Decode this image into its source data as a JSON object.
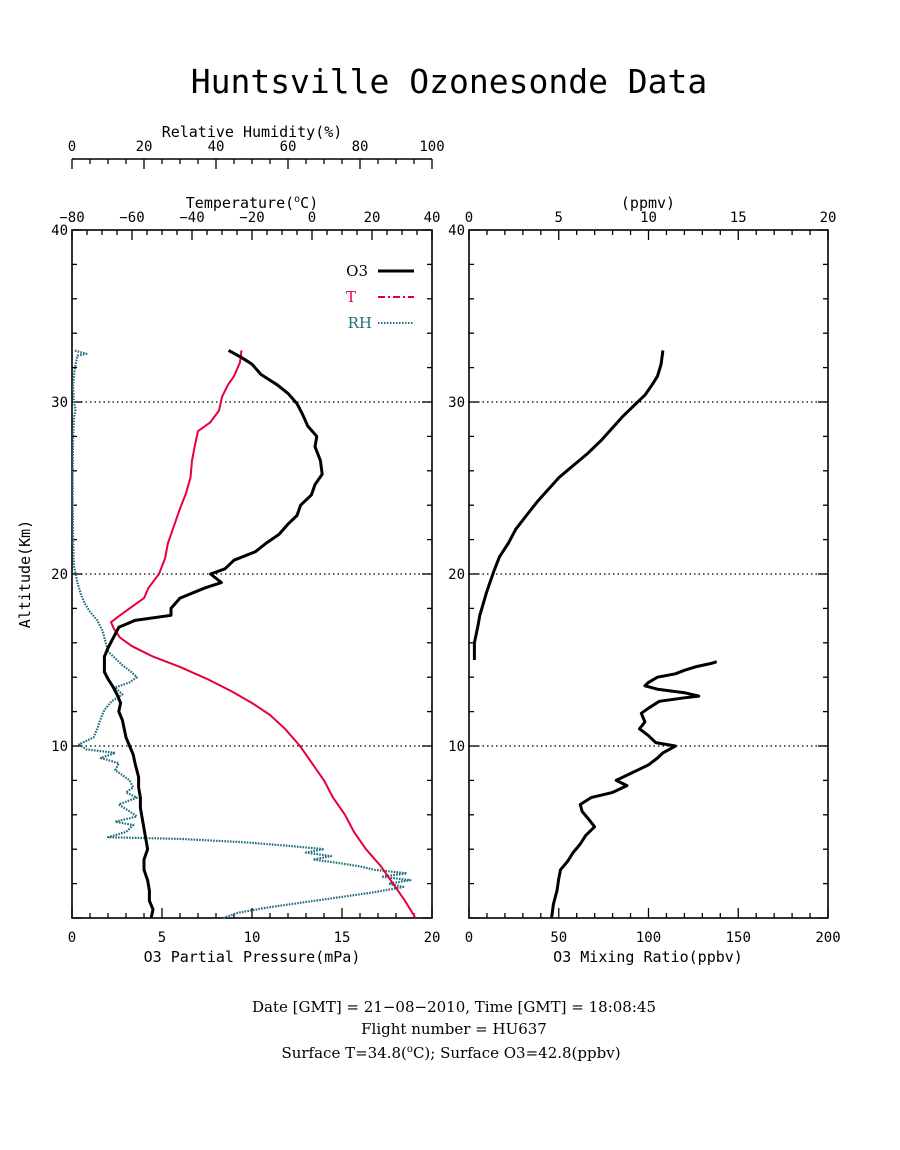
{
  "title": "Huntsville Ozonesonde Data",
  "colors": {
    "o3": "#000000",
    "temperature": "#e8003a",
    "rh": "#1f6f7a"
  },
  "left_panel": {
    "top_axis_1": {
      "label": "Relative Humidity(%)",
      "ticks": [
        "0",
        "20",
        "40",
        "60",
        "80",
        "100"
      ]
    },
    "top_axis_2": {
      "label_prefix": "Temperature(",
      "label_sup": "o",
      "label_suffix": "C)",
      "ticks": [
        "−80",
        "−60",
        "−40",
        "−20",
        "0",
        "20",
        "40"
      ]
    },
    "y_axis": {
      "label": "Altitude(Km)",
      "ticks": [
        "10",
        "20",
        "30",
        "40"
      ]
    },
    "bottom_axis": {
      "label": "O3 Partial Pressure(mPa)",
      "ticks": [
        "0",
        "5",
        "10",
        "15",
        "20"
      ]
    },
    "legend": [
      {
        "name": "O3",
        "style": "solid"
      },
      {
        "name": "T",
        "style": "dash-dot"
      },
      {
        "name": "RH",
        "style": "dotted"
      }
    ]
  },
  "right_panel": {
    "top_axis": {
      "label": "(ppmv)",
      "ticks": [
        "0",
        "5",
        "10",
        "15",
        "20"
      ]
    },
    "y_axis": {
      "ticks": [
        "10",
        "20",
        "30",
        "40"
      ]
    },
    "bottom_axis": {
      "label": "O3 Mixing Ratio(ppbv)",
      "ticks": [
        "0",
        "50",
        "100",
        "150",
        "200"
      ]
    }
  },
  "footer": {
    "line1": "Date [GMT] = 21−08−2010,  Time [GMT] = 18:08:45",
    "line2": "Flight number = HU637",
    "line3_a": "Surface T=34.8(",
    "line3_sup": "o",
    "line3_b": "C); Surface O3=42.8(ppbv)"
  },
  "chart_data": [
    {
      "type": "line",
      "panel": "left",
      "y_label": "Altitude(Km)",
      "ylim": [
        0,
        40
      ],
      "grid_lines_y": [
        10,
        20,
        30
      ],
      "series": [
        {
          "name": "O3",
          "xlabel": "O3 Partial Pressure(mPa)",
          "xlim": [
            0,
            20
          ],
          "points": [
            [
              4.4,
              0.0
            ],
            [
              4.5,
              0.5
            ],
            [
              4.3,
              1.0
            ],
            [
              4.3,
              1.6
            ],
            [
              4.2,
              2.2
            ],
            [
              4.0,
              2.8
            ],
            [
              4.0,
              3.4
            ],
            [
              4.2,
              4.0
            ],
            [
              4.1,
              4.6
            ],
            [
              4.0,
              5.2
            ],
            [
              3.9,
              5.8
            ],
            [
              3.8,
              6.4
            ],
            [
              3.8,
              7.0
            ],
            [
              3.7,
              7.6
            ],
            [
              3.7,
              8.2
            ],
            [
              3.6,
              8.6
            ],
            [
              3.5,
              9.0
            ],
            [
              3.4,
              9.5
            ],
            [
              3.2,
              10.0
            ],
            [
              3.0,
              10.5
            ],
            [
              2.9,
              11.0
            ],
            [
              2.8,
              11.5
            ],
            [
              2.6,
              12.0
            ],
            [
              2.7,
              12.5
            ],
            [
              2.5,
              13.0
            ],
            [
              2.3,
              13.4
            ],
            [
              2.0,
              13.9
            ],
            [
              1.8,
              14.3
            ],
            [
              1.8,
              14.8
            ],
            [
              1.8,
              15.2
            ],
            [
              2.0,
              15.7
            ],
            [
              2.3,
              16.3
            ],
            [
              2.6,
              16.9
            ],
            [
              3.5,
              17.3
            ],
            [
              5.5,
              17.6
            ],
            [
              5.5,
              18.0
            ],
            [
              6.0,
              18.6
            ],
            [
              7.4,
              19.2
            ],
            [
              8.3,
              19.5
            ],
            [
              7.7,
              20.0
            ],
            [
              8.5,
              20.3
            ],
            [
              9.0,
              20.8
            ],
            [
              10.2,
              21.3
            ],
            [
              10.8,
              21.8
            ],
            [
              11.5,
              22.3
            ],
            [
              12.0,
              22.9
            ],
            [
              12.5,
              23.4
            ],
            [
              12.7,
              24.0
            ],
            [
              13.3,
              24.6
            ],
            [
              13.5,
              25.2
            ],
            [
              13.9,
              25.8
            ],
            [
              13.8,
              26.6
            ],
            [
              13.5,
              27.4
            ],
            [
              13.6,
              28.0
            ],
            [
              13.1,
              28.6
            ],
            [
              12.8,
              29.3
            ],
            [
              12.5,
              29.9
            ],
            [
              12.0,
              30.5
            ],
            [
              11.4,
              31.0
            ],
            [
              10.5,
              31.6
            ],
            [
              10.0,
              32.2
            ],
            [
              9.4,
              32.6
            ],
            [
              8.7,
              33.0
            ]
          ]
        },
        {
          "name": "T",
          "xlabel": "Temperature(oC)",
          "xlim": [
            -80,
            40
          ],
          "points": [
            [
              34.5,
              0.0
            ],
            [
              31.0,
              1.0
            ],
            [
              27.0,
              2.0
            ],
            [
              23.0,
              3.0
            ],
            [
              18.0,
              4.0
            ],
            [
              14.0,
              5.0
            ],
            [
              11.0,
              6.0
            ],
            [
              7.0,
              7.0
            ],
            [
              4.0,
              8.0
            ],
            [
              0.0,
              9.0
            ],
            [
              -4.0,
              10.0
            ],
            [
              -9.0,
              11.0
            ],
            [
              -14.0,
              11.8
            ],
            [
              -20.0,
              12.5
            ],
            [
              -27.0,
              13.2
            ],
            [
              -35.0,
              13.9
            ],
            [
              -44.0,
              14.6
            ],
            [
              -53.0,
              15.2
            ],
            [
              -60.0,
              15.8
            ],
            [
              -64.0,
              16.3
            ],
            [
              -66.0,
              16.8
            ],
            [
              -67.0,
              17.2
            ],
            [
              -64.0,
              17.6
            ],
            [
              -60.0,
              18.1
            ],
            [
              -56.0,
              18.6
            ],
            [
              -54.5,
              19.2
            ],
            [
              -51.0,
              20.0
            ],
            [
              -49.0,
              20.9
            ],
            [
              -48.0,
              21.8
            ],
            [
              -46.0,
              22.8
            ],
            [
              -44.0,
              23.8
            ],
            [
              -42.0,
              24.7
            ],
            [
              -40.5,
              25.6
            ],
            [
              -40.0,
              26.6
            ],
            [
              -39.0,
              27.5
            ],
            [
              -38.0,
              28.3
            ],
            [
              -34.0,
              28.8
            ],
            [
              -31.0,
              29.5
            ],
            [
              -30.0,
              30.3
            ],
            [
              -28.0,
              31.0
            ],
            [
              -26.0,
              31.5
            ],
            [
              -24.0,
              32.3
            ],
            [
              -23.5,
              33.0
            ]
          ]
        },
        {
          "name": "RH",
          "xlabel": "Relative Humidity(%)",
          "xlim": [
            0,
            100
          ],
          "points": [
            [
              42.0,
              0.0
            ],
            [
              46.0,
              0.3
            ],
            [
              54.0,
              0.6
            ],
            [
              64.0,
              0.9
            ],
            [
              74.0,
              1.2
            ],
            [
              84.0,
              1.5
            ],
            [
              92.0,
              1.8
            ],
            [
              88.0,
              2.0
            ],
            [
              94.0,
              2.2
            ],
            [
              86.0,
              2.4
            ],
            [
              93.0,
              2.6
            ],
            [
              84.0,
              2.8
            ],
            [
              80.0,
              3.0
            ],
            [
              74.0,
              3.2
            ],
            [
              67.0,
              3.4
            ],
            [
              72.0,
              3.6
            ],
            [
              65.0,
              3.8
            ],
            [
              70.0,
              4.0
            ],
            [
              60.0,
              4.2
            ],
            [
              48.0,
              4.4
            ],
            [
              30.0,
              4.6
            ],
            [
              10.0,
              4.7
            ],
            [
              15.0,
              5.0
            ],
            [
              17.0,
              5.4
            ],
            [
              12.0,
              5.6
            ],
            [
              18.0,
              5.9
            ],
            [
              16.0,
              6.2
            ],
            [
              13.0,
              6.6
            ],
            [
              18.0,
              7.0
            ],
            [
              15.0,
              7.3
            ],
            [
              17.0,
              7.6
            ],
            [
              16.0,
              8.0
            ],
            [
              14.0,
              8.3
            ],
            [
              12.0,
              8.6
            ],
            [
              13.0,
              9.0
            ],
            [
              8.0,
              9.3
            ],
            [
              12.0,
              9.6
            ],
            [
              4.0,
              9.8
            ],
            [
              2.0,
              10.1
            ],
            [
              6.0,
              10.5
            ],
            [
              7.0,
              11.0
            ],
            [
              8.0,
              11.6
            ],
            [
              9.0,
              12.1
            ],
            [
              11.0,
              12.6
            ],
            [
              14.0,
              13.0
            ],
            [
              12.0,
              13.4
            ],
            [
              16.0,
              13.7
            ],
            [
              18.0,
              14.0
            ],
            [
              16.5,
              14.3
            ],
            [
              14.0,
              14.7
            ],
            [
              12.0,
              15.1
            ],
            [
              10.0,
              15.5
            ],
            [
              9.5,
              15.9
            ],
            [
              9.0,
              16.3
            ],
            [
              8.5,
              16.7
            ],
            [
              7.0,
              17.3
            ],
            [
              5.0,
              17.8
            ],
            [
              3.5,
              18.3
            ],
            [
              2.5,
              18.8
            ],
            [
              1.5,
              19.5
            ],
            [
              0.5,
              20.5
            ],
            [
              0.3,
              22.0
            ],
            [
              0.2,
              24.0
            ],
            [
              0.2,
              26.0
            ],
            [
              0.3,
              28.0
            ],
            [
              0.5,
              29.0
            ],
            [
              1.0,
              29.6
            ],
            [
              0.5,
              30.0
            ],
            [
              0.3,
              31.0
            ],
            [
              0.8,
              32.0
            ],
            [
              1.5,
              32.7
            ],
            [
              4.0,
              32.8
            ],
            [
              0.5,
              33.0
            ]
          ]
        }
      ]
    },
    {
      "type": "line",
      "panel": "right",
      "xlabel": "O3 Mixing Ratio(ppbv)",
      "xlim": [
        0,
        200
      ],
      "top_axis_ppmv_lim": [
        0,
        20
      ],
      "ylim": [
        0,
        40
      ],
      "grid_lines_y": [
        10,
        20,
        30
      ],
      "series": [
        {
          "name": "O3",
          "points": [
            [
              46,
              0.0
            ],
            [
              47,
              0.8
            ],
            [
              49,
              1.6
            ],
            [
              50,
              2.3
            ],
            [
              51,
              2.8
            ],
            [
              55,
              3.3
            ],
            [
              58,
              3.8
            ],
            [
              62,
              4.3
            ],
            [
              65,
              4.8
            ],
            [
              70,
              5.3
            ],
            [
              67,
              5.7
            ],
            [
              63,
              6.2
            ],
            [
              62,
              6.6
            ],
            [
              68,
              7.0
            ],
            [
              80,
              7.3
            ],
            [
              88,
              7.7
            ],
            [
              82,
              8.0
            ],
            [
              90,
              8.4
            ],
            [
              100,
              8.9
            ],
            [
              105,
              9.3
            ],
            [
              108,
              9.6
            ],
            [
              115,
              10.0
            ],
            [
              104,
              10.2
            ],
            [
              100,
              10.6
            ],
            [
              95,
              11.0
            ],
            [
              98,
              11.4
            ],
            [
              96,
              11.9
            ],
            [
              100,
              12.2
            ],
            [
              106,
              12.6
            ],
            [
              120,
              12.8
            ],
            [
              128,
              12.9
            ],
            [
              120,
              13.1
            ],
            [
              105,
              13.3
            ],
            [
              98,
              13.5
            ],
            [
              100,
              13.7
            ],
            [
              105,
              14.0
            ],
            [
              115,
              14.2
            ],
            [
              120,
              14.4
            ],
            [
              126,
              14.6
            ],
            [
              135,
              14.8
            ],
            [
              138,
              14.9
            ],
            [
              3,
              15.0
            ],
            [
              3,
              16.0
            ],
            [
              5,
              17.0
            ],
            [
              6,
              17.6
            ],
            [
              8,
              18.3
            ],
            [
              10,
              19.0
            ],
            [
              12,
              19.6
            ],
            [
              14,
              20.2
            ],
            [
              17,
              21.0
            ],
            [
              22,
              21.8
            ],
            [
              26,
              22.6
            ],
            [
              32,
              23.4
            ],
            [
              38,
              24.2
            ],
            [
              44,
              24.9
            ],
            [
              50,
              25.6
            ],
            [
              58,
              26.3
            ],
            [
              66,
              27.0
            ],
            [
              74,
              27.8
            ],
            [
              80,
              28.5
            ],
            [
              86,
              29.2
            ],
            [
              92,
              29.8
            ],
            [
              98,
              30.4
            ],
            [
              102,
              31.0
            ],
            [
              105,
              31.5
            ],
            [
              107,
              32.2
            ],
            [
              108,
              33.0
            ]
          ]
        }
      ]
    }
  ]
}
